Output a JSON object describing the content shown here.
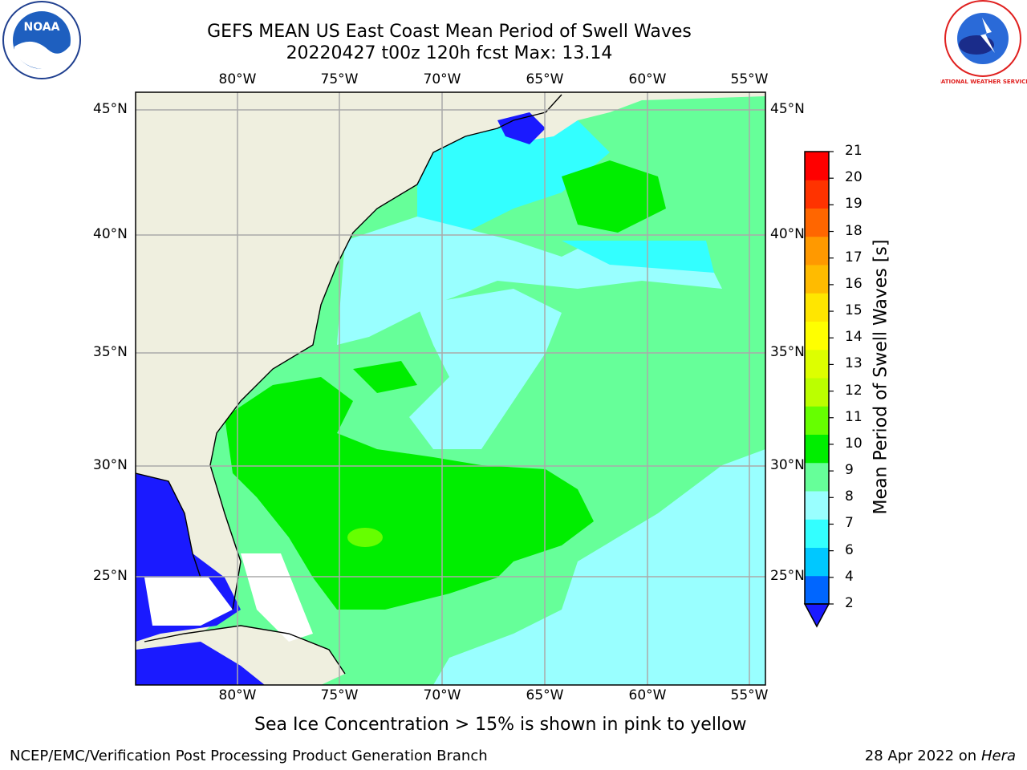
{
  "title_line1": "GEFS MEAN US East Coast Mean Period of Swell Waves",
  "title_line2": "20220427 t00z 120h fcst   Max: 13.14",
  "lon_labels": [
    "80°W",
    "75°W",
    "70°W",
    "65°W",
    "60°W",
    "55°W"
  ],
  "lat_labels": [
    "45°N",
    "40°N",
    "35°N",
    "30°N",
    "25°N"
  ],
  "colorbar": {
    "title": "Mean Period of Swell Waves [s]",
    "levels": [
      "2",
      "4",
      "6",
      "7",
      "8",
      "9",
      "10",
      "11",
      "12",
      "13",
      "14",
      "15",
      "16",
      "17",
      "18",
      "19",
      "20",
      "21"
    ],
    "colors": [
      "#0066ff",
      "#00c8ff",
      "#33ffff",
      "#99ffff",
      "#66ff99",
      "#00ee00",
      "#66ff00",
      "#bbff00",
      "#ddff00",
      "#ffff00",
      "#ffe600",
      "#ffbb00",
      "#ff9900",
      "#ff6600",
      "#ff3300",
      "#ff0000"
    ],
    "under_color": "#1a1aff"
  },
  "map_colors": {
    "land": "#efefdf",
    "swell_8_9": "#99ffff",
    "swell_9_10": "#66ff99",
    "swell_10_11": "#00ee00",
    "swell_7_8": "#33ffff",
    "swell_under": "#1a1aff"
  },
  "logos": {
    "left_logo": "NOAA",
    "right_logo": "NATIONAL WEATHER SERVICE"
  },
  "footer": {
    "note": "Sea Ice Concentration > 15% is shown in pink to yellow",
    "credit": "NCEP/EMC/Verification Post Processing Product Generation Branch",
    "date": "28 Apr 2022 on ",
    "machine": "Hera"
  }
}
